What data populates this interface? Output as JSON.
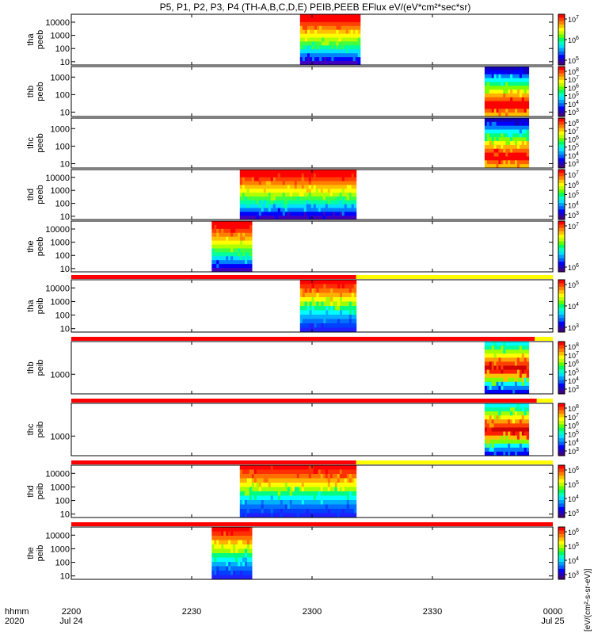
{
  "chart_data": {
    "type": "heatmap",
    "title": "P5, P1, P2, P3, P4 (TH-A,B,C,D,E) PEIB,PEEB EFlux eV/(eV*cm²*sec*sr)",
    "x_unit_label": "hhmm",
    "x_year_label": "2020",
    "x_range": [
      "2020-07-24 22:00",
      "2020-07-25 00:00"
    ],
    "x_ticks": [
      {
        "label": "2200",
        "sublabel": "Jul 24",
        "minute": 0
      },
      {
        "label": "2230",
        "sublabel": "",
        "minute": 30
      },
      {
        "label": "2300",
        "sublabel": "",
        "minute": 60
      },
      {
        "label": "2330",
        "sublabel": "",
        "minute": 90
      },
      {
        "label": "0000",
        "sublabel": "Jul 25",
        "minute": 120
      }
    ],
    "colorbar_label": "[eV/(cm²-s-sr-eV)]",
    "panels": [
      {
        "id": "tha-peeb",
        "ylabel": "tha peeb",
        "ylog_range": [
          0.75,
          4.6
        ],
        "yticks": [
          {
            "value": 10,
            "label": "10"
          },
          {
            "value": 100,
            "label": "100"
          },
          {
            "value": 1000,
            "label": "1000"
          },
          {
            "value": 10000,
            "label": "10000"
          }
        ],
        "data_interval_min": [
          57,
          72
        ],
        "palette": "tha_peeb",
        "cb_ticks": [
          {
            "mantissa": "10",
            "exp": "5"
          },
          {
            "mantissa": "10",
            "exp": "6"
          },
          {
            "mantissa": "10",
            "exp": "7"
          }
        ],
        "status_bar": null
      },
      {
        "id": "thb-peeb",
        "ylabel": "thb peeb",
        "ylog_range": [
          0.75,
          3.6
        ],
        "yticks": [
          {
            "value": 10,
            "label": "10"
          },
          {
            "value": 100,
            "label": "100"
          },
          {
            "value": 1000,
            "label": "1000"
          }
        ],
        "data_interval_min": [
          103,
          114
        ],
        "palette": "thb_peeb",
        "cb_ticks": [
          {
            "mantissa": "10",
            "exp": "3"
          },
          {
            "mantissa": "10",
            "exp": "4"
          },
          {
            "mantissa": "10",
            "exp": "5"
          },
          {
            "mantissa": "10",
            "exp": "6"
          },
          {
            "mantissa": "10",
            "exp": "7"
          },
          {
            "mantissa": "10",
            "exp": "8"
          }
        ],
        "status_bar": null
      },
      {
        "id": "thc-peeb",
        "ylabel": "thc peeb",
        "ylog_range": [
          0.75,
          3.6
        ],
        "yticks": [
          {
            "value": 10,
            "label": "10"
          },
          {
            "value": 100,
            "label": "100"
          },
          {
            "value": 1000,
            "label": "1000"
          }
        ],
        "data_interval_min": [
          103,
          114
        ],
        "palette": "thb_peeb",
        "cb_ticks": [
          {
            "mantissa": "10",
            "exp": "3"
          },
          {
            "mantissa": "10",
            "exp": "4"
          },
          {
            "mantissa": "10",
            "exp": "5"
          },
          {
            "mantissa": "10",
            "exp": "6"
          },
          {
            "mantissa": "10",
            "exp": "7"
          },
          {
            "mantissa": "10",
            "exp": "8"
          }
        ],
        "status_bar": null
      },
      {
        "id": "thd-peeb",
        "ylabel": "thd peeb",
        "ylog_range": [
          0.75,
          4.6
        ],
        "yticks": [
          {
            "value": 10,
            "label": "10"
          },
          {
            "value": 100,
            "label": "100"
          },
          {
            "value": 1000,
            "label": "1000"
          },
          {
            "value": 10000,
            "label": "10000"
          }
        ],
        "data_interval_min": [
          42,
          71
        ],
        "palette": "tha_peeb",
        "cb_ticks": [
          {
            "mantissa": "10",
            "exp": "3"
          },
          {
            "mantissa": "10",
            "exp": "4"
          },
          {
            "mantissa": "10",
            "exp": "5"
          },
          {
            "mantissa": "10",
            "exp": "6"
          },
          {
            "mantissa": "10",
            "exp": "7"
          }
        ],
        "status_bar": null
      },
      {
        "id": "the-peeb",
        "ylabel": "the peeb",
        "ylog_range": [
          0.75,
          4.6
        ],
        "yticks": [
          {
            "value": 10,
            "label": "10"
          },
          {
            "value": 100,
            "label": "100"
          },
          {
            "value": 1000,
            "label": "1000"
          },
          {
            "value": 10000,
            "label": "10000"
          }
        ],
        "data_interval_min": [
          35,
          45
        ],
        "palette": "tha_peeb",
        "cb_ticks": [
          {
            "mantissa": "10",
            "exp": "6"
          },
          {
            "mantissa": "10",
            "exp": "7"
          }
        ],
        "status_bar": null
      },
      {
        "id": "tha-peib",
        "ylabel": "tha peib",
        "ylog_range": [
          0.75,
          4.6
        ],
        "yticks": [
          {
            "value": 10,
            "label": "10"
          },
          {
            "value": 100,
            "label": "100"
          },
          {
            "value": 1000,
            "label": "1000"
          },
          {
            "value": 10000,
            "label": "10000"
          }
        ],
        "data_interval_min": [
          57,
          71
        ],
        "palette": "ion",
        "cb_ticks": [
          {
            "mantissa": "10",
            "exp": "3"
          },
          {
            "mantissa": "10",
            "exp": "4"
          },
          {
            "mantissa": "10",
            "exp": "5"
          }
        ],
        "status_bar": {
          "red_until_min": 71,
          "colors": [
            "red",
            "yellow"
          ]
        }
      },
      {
        "id": "thb-peib",
        "ylabel": "thb peib",
        "ylog_range": [
          2.4,
          4.0
        ],
        "yticks": [
          {
            "value": 1000,
            "label": "1000"
          }
        ],
        "data_interval_min": [
          103,
          114
        ],
        "palette": "ion_ring",
        "cb_ticks": [
          {
            "mantissa": "10",
            "exp": "3"
          },
          {
            "mantissa": "10",
            "exp": "4"
          },
          {
            "mantissa": "10",
            "exp": "5"
          },
          {
            "mantissa": "10",
            "exp": "6"
          },
          {
            "mantissa": "10",
            "exp": "7"
          },
          {
            "mantissa": "10",
            "exp": "8"
          }
        ],
        "status_bar": {
          "red_until_min": 115.5,
          "colors": [
            "red",
            "yellow"
          ]
        }
      },
      {
        "id": "thc-peib",
        "ylabel": "thc peib",
        "ylog_range": [
          2.4,
          4.0
        ],
        "yticks": [
          {
            "value": 1000,
            "label": "1000"
          }
        ],
        "data_interval_min": [
          103,
          114
        ],
        "palette": "ion_ring",
        "cb_ticks": [
          {
            "mantissa": "10",
            "exp": "3"
          },
          {
            "mantissa": "10",
            "exp": "4"
          },
          {
            "mantissa": "10",
            "exp": "5"
          },
          {
            "mantissa": "10",
            "exp": "6"
          },
          {
            "mantissa": "10",
            "exp": "7"
          },
          {
            "mantissa": "10",
            "exp": "8"
          }
        ],
        "status_bar": {
          "red_until_min": 116,
          "colors": [
            "red",
            "yellow"
          ]
        }
      },
      {
        "id": "thd-peib",
        "ylabel": "thd peib",
        "ylog_range": [
          0.75,
          4.6
        ],
        "yticks": [
          {
            "value": 10,
            "label": "10"
          },
          {
            "value": 100,
            "label": "100"
          },
          {
            "value": 1000,
            "label": "1000"
          },
          {
            "value": 10000,
            "label": "10000"
          }
        ],
        "data_interval_min": [
          42,
          71
        ],
        "palette": "ion",
        "cb_ticks": [
          {
            "mantissa": "10",
            "exp": "3"
          },
          {
            "mantissa": "10",
            "exp": "4"
          },
          {
            "mantissa": "10",
            "exp": "5"
          },
          {
            "mantissa": "10",
            "exp": "6"
          }
        ],
        "status_bar": {
          "red_until_min": 71,
          "colors": [
            "red",
            "yellow"
          ]
        }
      },
      {
        "id": "the-peib",
        "ylabel": "the peib",
        "ylog_range": [
          0.75,
          4.6
        ],
        "yticks": [
          {
            "value": 10,
            "label": "10"
          },
          {
            "value": 100,
            "label": "100"
          },
          {
            "value": 1000,
            "label": "1000"
          },
          {
            "value": 10000,
            "label": "10000"
          }
        ],
        "data_interval_min": [
          35,
          45
        ],
        "palette": "ion",
        "cb_ticks": [
          {
            "mantissa": "10",
            "exp": "3"
          },
          {
            "mantissa": "10",
            "exp": "4"
          },
          {
            "mantissa": "10",
            "exp": "5"
          },
          {
            "mantissa": "10",
            "exp": "6"
          }
        ],
        "status_bar": {
          "red_until_min": 120,
          "colors": [
            "red",
            "yellow"
          ]
        }
      }
    ],
    "palettes": {
      "tha_peeb": [
        "#ff0000",
        "#ff0000",
        "#ff4000",
        "#ff8000",
        "#ffc000",
        "#ffff00",
        "#b0ff00",
        "#40ff40",
        "#00ffa0",
        "#00e0ff",
        "#0080ff",
        "#0000ff",
        "#4000c0"
      ],
      "thb_peeb": [
        "#1000c0",
        "#0000ff",
        "#0080ff",
        "#00ffff",
        "#00ff80",
        "#80ff00",
        "#ffff00",
        "#ffb000",
        "#ff6000",
        "#ff0000",
        "#ff0000",
        "#ff6000",
        "#ffc000"
      ],
      "ion": [
        "#ff0000",
        "#ff3000",
        "#ff7000",
        "#ffb000",
        "#ffff00",
        "#a0ff00",
        "#00ff80",
        "#00ffff",
        "#00b0ff",
        "#0070ff",
        "#0040ff",
        "#2020ff"
      ],
      "ion_ring": [
        "#00ffff",
        "#00ffa0",
        "#a0ff00",
        "#ffff00",
        "#ffa000",
        "#ff4000",
        "#d00000",
        "#ff2000",
        "#ffc000",
        "#80ff00",
        "#00ffff",
        "#0080ff",
        "#0000ff"
      ]
    }
  }
}
